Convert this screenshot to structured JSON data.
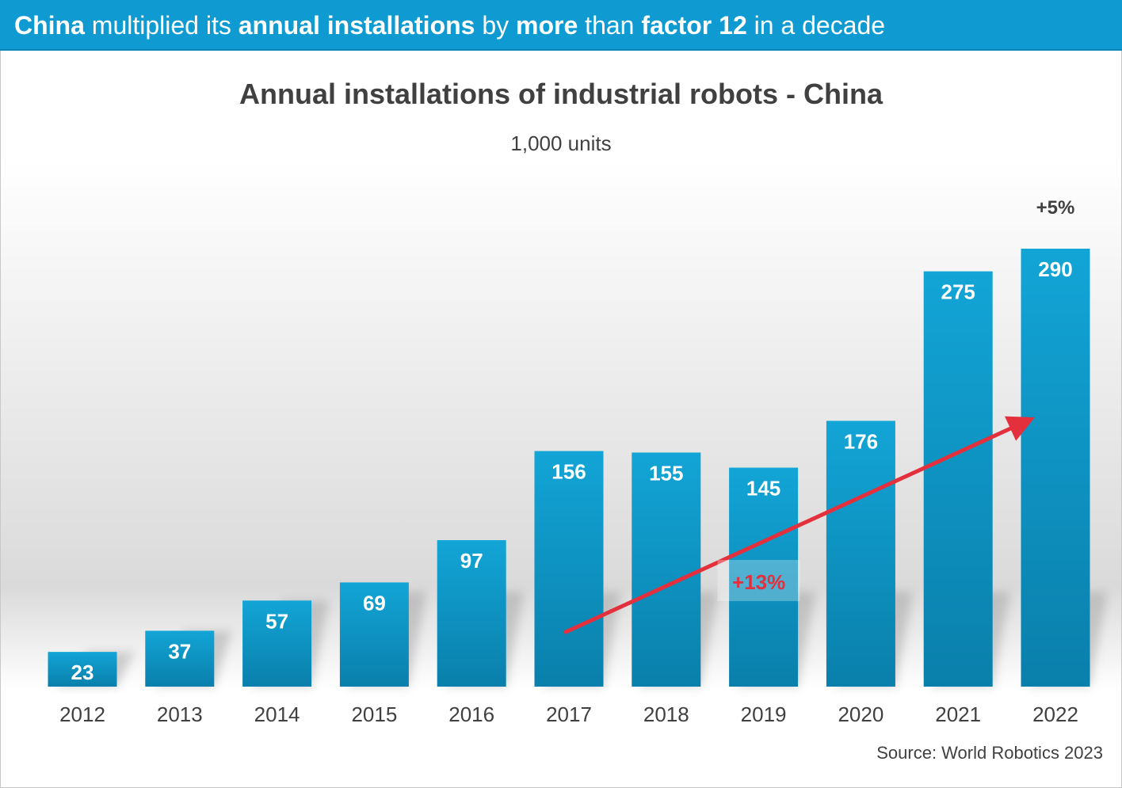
{
  "banner": {
    "segments": [
      {
        "text": "China",
        "bold": true
      },
      {
        "text": " multiplied its ",
        "bold": false
      },
      {
        "text": "annual installations",
        "bold": true
      },
      {
        "text": " by ",
        "bold": false
      },
      {
        "text": "more",
        "bold": true
      },
      {
        "text": " than ",
        "bold": false
      },
      {
        "text": "factor 12",
        "bold": true
      },
      {
        "text": " in a decade",
        "bold": false
      }
    ]
  },
  "source": "Source: World Robotics 2023",
  "colors": {
    "banner": "#0f9bd2",
    "bar_top": "#12a5d6",
    "bar_bottom": "#0a7fab",
    "arrow": "#e3303c",
    "text": "#404040"
  },
  "chart_data": {
    "type": "bar",
    "title": "Annual installations of industrial robots - China",
    "subtitle": "1,000 units",
    "xlabel": "",
    "ylabel": "",
    "ylim": [
      0,
      290
    ],
    "categories": [
      "2012",
      "2013",
      "2014",
      "2015",
      "2016",
      "2017",
      "2018",
      "2019",
      "2020",
      "2021",
      "2022"
    ],
    "values": [
      23,
      37,
      57,
      69,
      97,
      156,
      155,
      145,
      176,
      275,
      290
    ],
    "data_labels": [
      "23",
      "37",
      "57",
      "69",
      "97",
      "156",
      "155",
      "145",
      "176",
      "275",
      "290"
    ],
    "grid": false,
    "legend": "none",
    "annotations": [
      {
        "text": "+5%",
        "category": "2022",
        "position": "above-bar"
      },
      {
        "text": "+13%",
        "type": "trend-arrow",
        "from": "2017",
        "to": "2022",
        "color": "#e3303c"
      }
    ]
  }
}
